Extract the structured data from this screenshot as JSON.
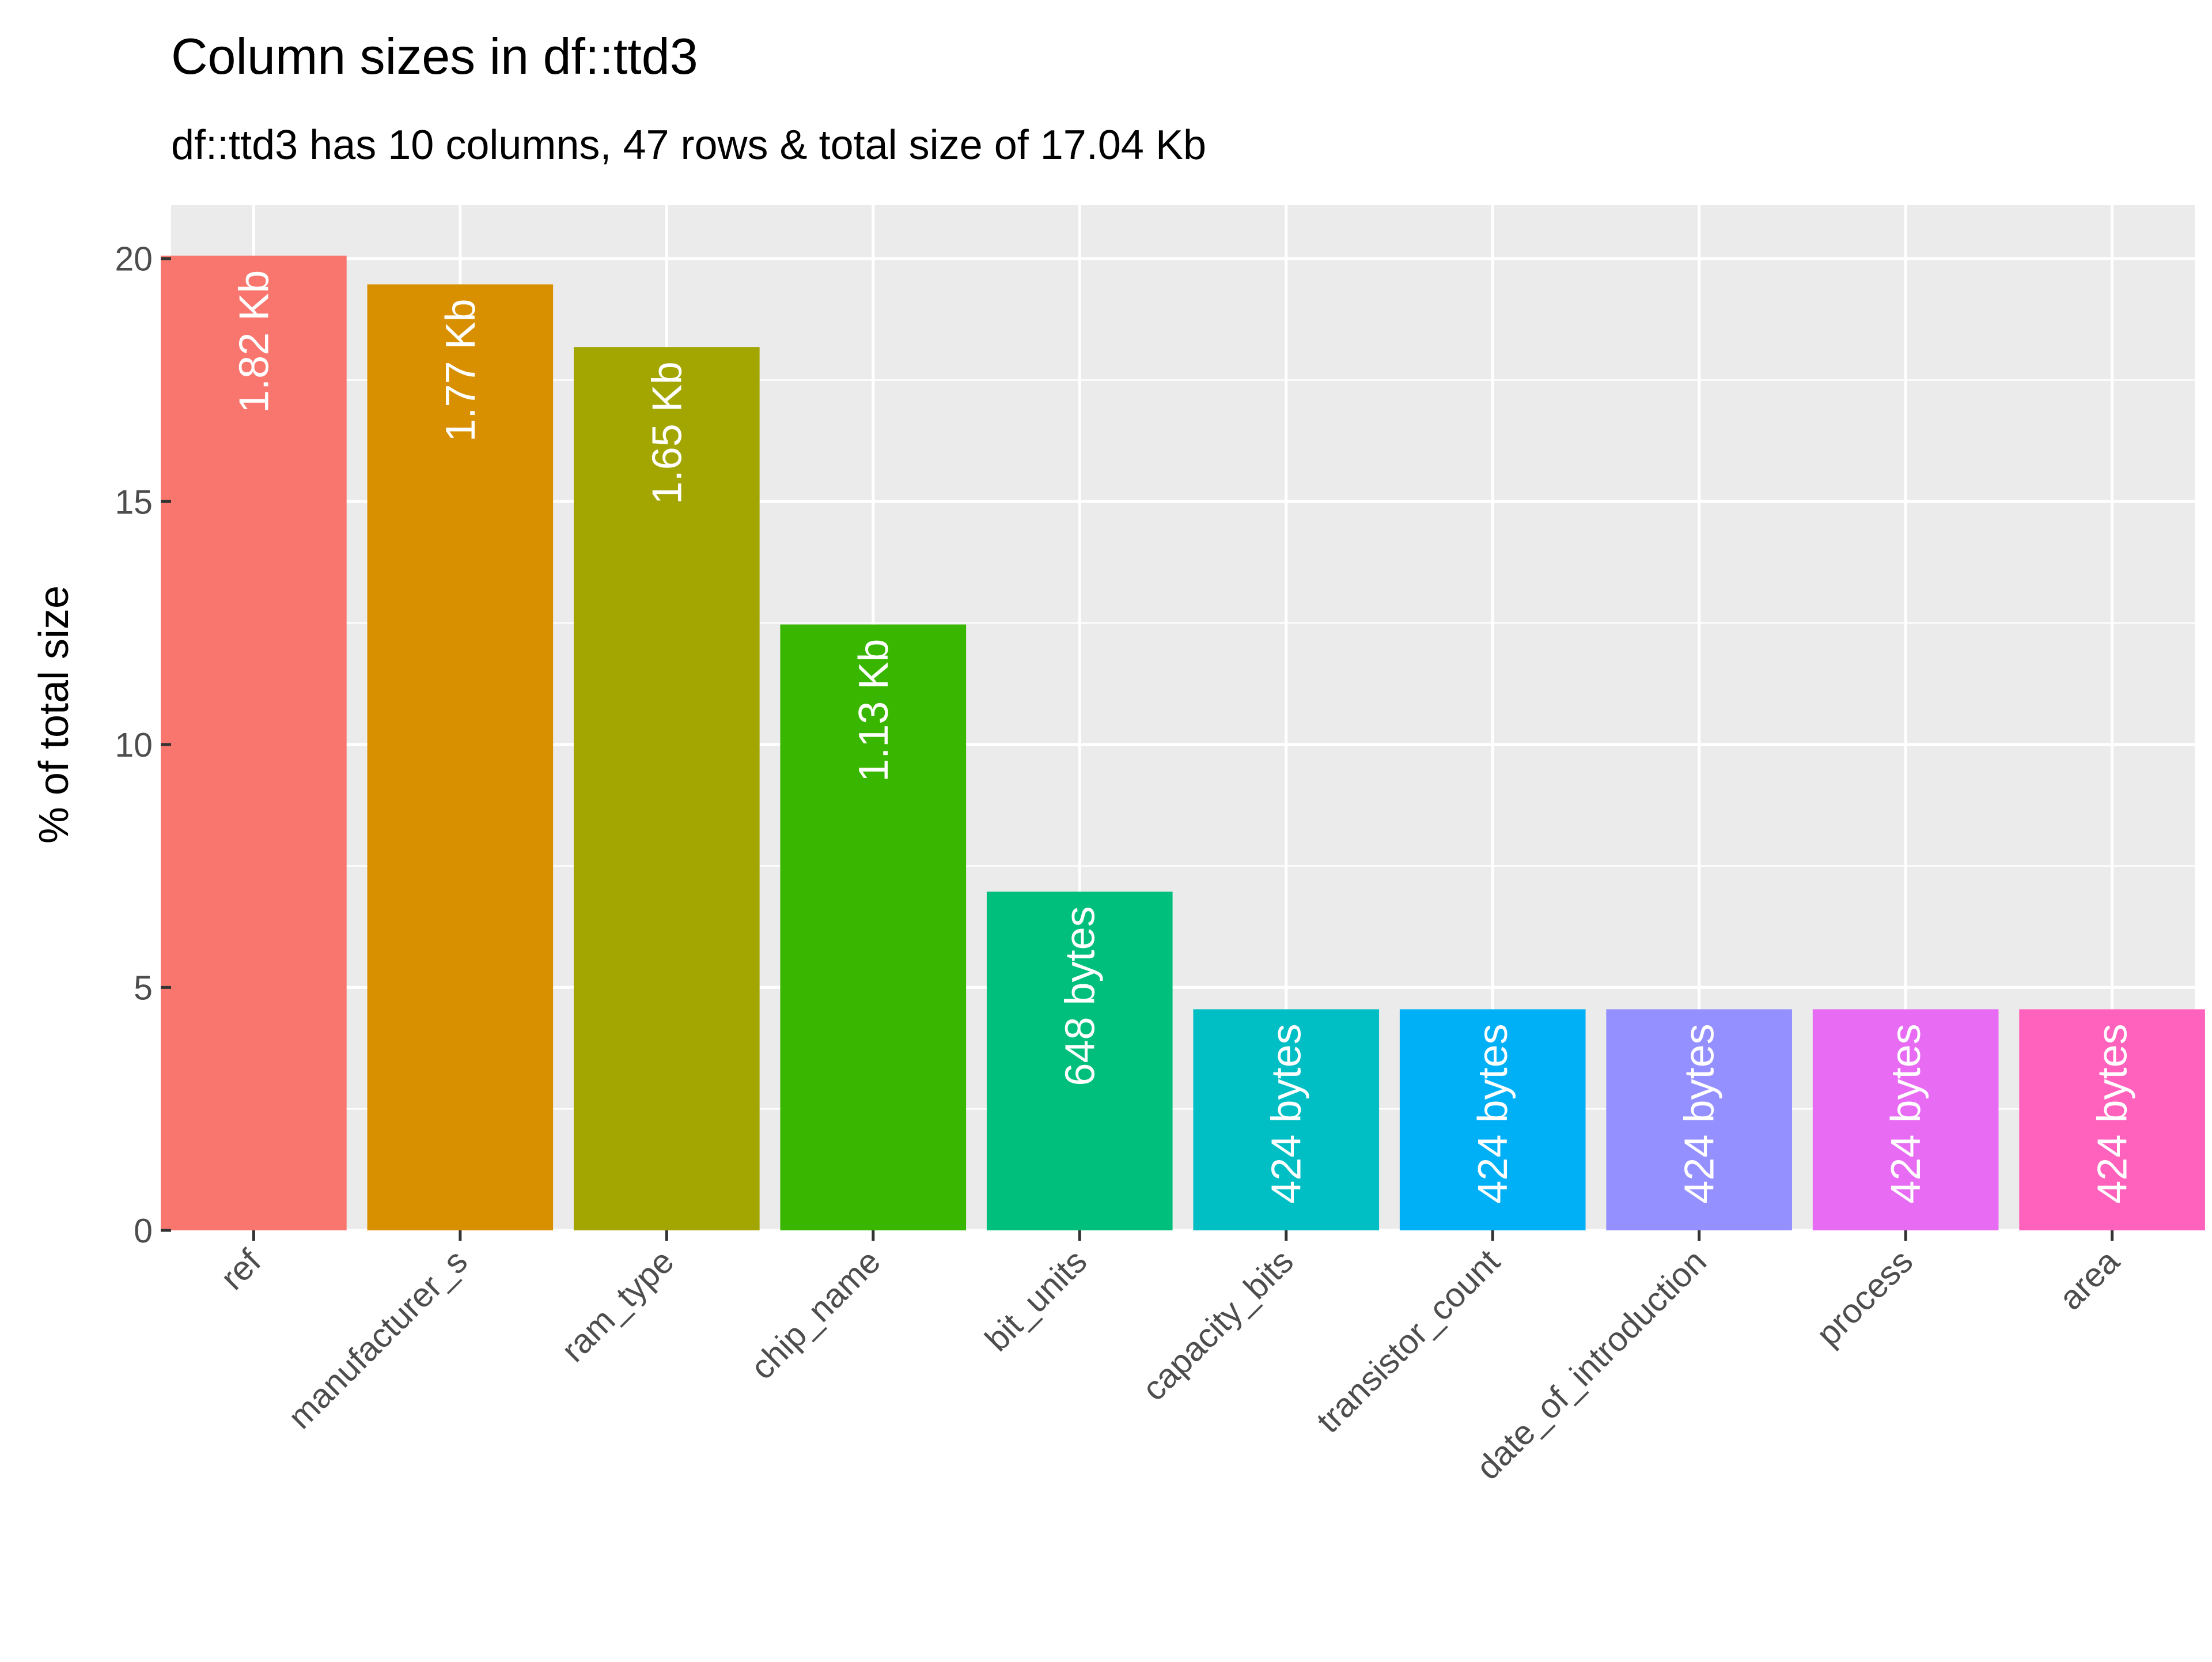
{
  "chart_data": {
    "type": "bar",
    "title": "Column sizes in df::ttd3",
    "subtitle": "df::ttd3 has 10 columns, 47 rows & total size of 17.04 Kb",
    "xlabel": "",
    "ylabel": "% of total size",
    "ylim": [
      0,
      21.1
    ],
    "yticks": [
      0,
      5,
      10,
      15,
      20
    ],
    "grid": true,
    "legend": "none",
    "categories": [
      "ref",
      "manufacturer_s",
      "ram_type",
      "chip_name",
      "bit_units",
      "capacity_bits",
      "transistor_count",
      "date_of_introduction",
      "process",
      "area"
    ],
    "values": [
      20.06,
      19.47,
      18.18,
      12.47,
      6.97,
      4.55,
      4.55,
      4.55,
      4.55,
      4.55
    ],
    "labels": [
      "1.82 Kb",
      "1.77 Kb",
      "1.65 Kb",
      "1.13 Kb",
      "648 bytes",
      "424 bytes",
      "424 bytes",
      "424 bytes",
      "424 bytes",
      "424 bytes"
    ],
    "colors": [
      "#F8766D",
      "#D89000",
      "#A3A500",
      "#39B600",
      "#00BF7D",
      "#00BFC4",
      "#00B0F6",
      "#9590FF",
      "#E76BF3",
      "#FF62BC"
    ],
    "panel_background": "#EBEBEB",
    "grid_color": "#FFFFFF"
  }
}
